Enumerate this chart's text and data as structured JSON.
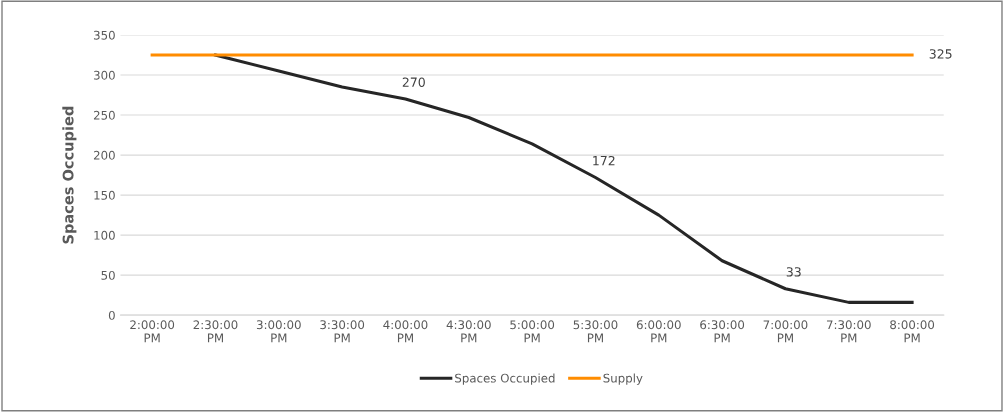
{
  "chart_data": {
    "type": "line",
    "ylabel": "Spaces Occupied",
    "categories": [
      "2:00:00\nPM",
      "2:30:00\nPM",
      "3:00:00\nPM",
      "3:30:00\nPM",
      "4:00:00\nPM",
      "4:30:00\nPM",
      "5:00:00\nPM",
      "5:30:00\nPM",
      "6:00:00\nPM",
      "6:30:00\nPM",
      "7:00:00\nPM",
      "7:30:00\nPM",
      "8:00:00\nPM"
    ],
    "series": [
      {
        "name": "Spaces Occupied",
        "color": "#262626",
        "values": [
          null,
          325,
          305,
          285,
          270,
          247,
          214,
          172,
          125,
          68,
          33,
          16,
          16
        ],
        "value_labels": [
          null,
          null,
          null,
          null,
          "270",
          null,
          null,
          "172",
          null,
          null,
          "33",
          null,
          null
        ]
      },
      {
        "name": "Supply",
        "color": "#ff8c00",
        "values": [
          325,
          325,
          325,
          325,
          325,
          325,
          325,
          325,
          325,
          325,
          325,
          325,
          325
        ],
        "value_labels": [
          null,
          null,
          null,
          null,
          null,
          null,
          null,
          null,
          null,
          null,
          null,
          null,
          "325"
        ]
      }
    ],
    "ylim": [
      0,
      350
    ],
    "yticks": [
      0,
      50,
      100,
      150,
      200,
      250,
      300,
      350
    ],
    "grid": "y",
    "legend": "bottom",
    "marker": "none",
    "line_style": "solid"
  }
}
